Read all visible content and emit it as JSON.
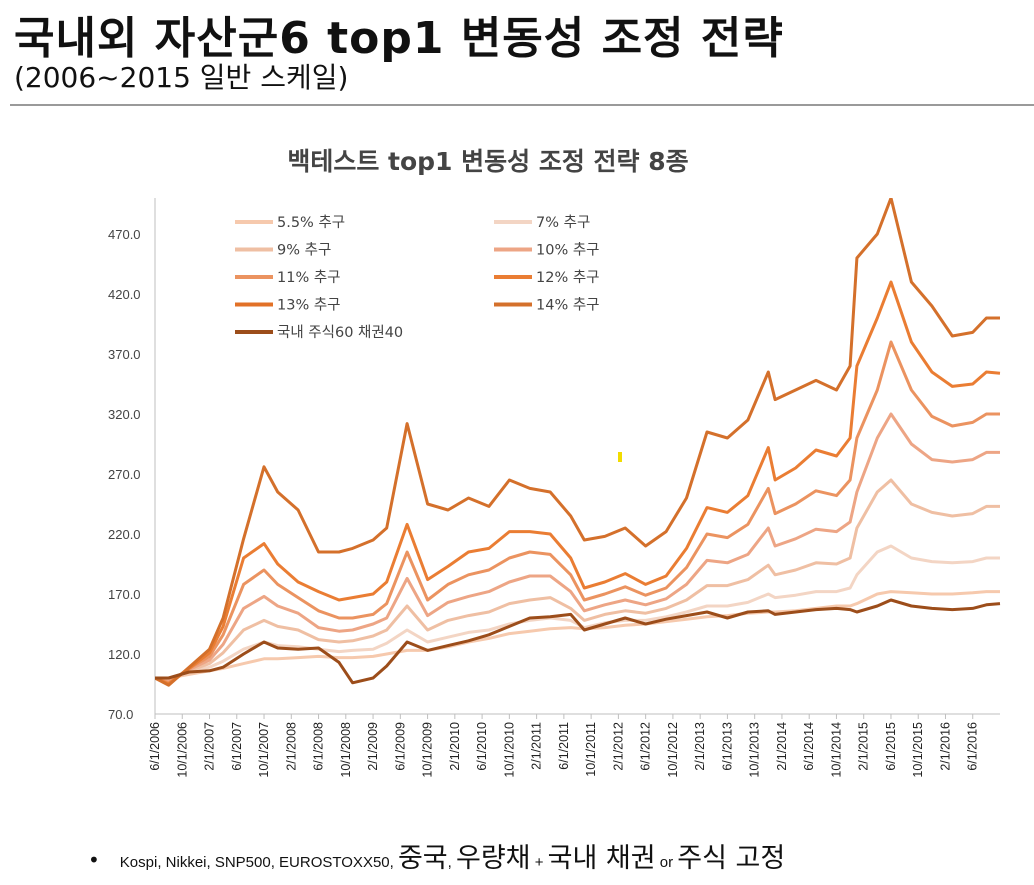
{
  "slide": {
    "title": "국내외 자산군6 top1 변동성 조정 전략",
    "subtitle": "(2006~2015 일반 스케일)"
  },
  "footer": {
    "bullet": "•",
    "part1": "Kospi, Nikkei, SNP500, EUROSTOXX50, ",
    "part2": "중국",
    "part3": ", ",
    "part4": "우량채",
    "part5": " + ",
    "part6": "국내 채권",
    "part7": " or ",
    "part8": "주식 고정"
  },
  "chart_data": {
    "type": "line",
    "title": "백테스트 top1 변동성 조정 전략 8종",
    "y_ticks": [
      "70.0",
      "120.0",
      "170.0",
      "220.0",
      "270.0",
      "320.0",
      "370.0",
      "420.0",
      "470.0"
    ],
    "ylim": [
      70,
      500
    ],
    "x_ticks": [
      "6/1/2006",
      "10/1/2006",
      "2/1/2007",
      "6/1/2007",
      "10/1/2007",
      "2/1/2008",
      "6/1/2008",
      "10/1/2008",
      "2/1/2009",
      "6/1/2009",
      "10/1/2009",
      "2/1/2010",
      "6/1/2010",
      "10/1/2010",
      "2/1/2011",
      "6/1/2011",
      "10/1/2011",
      "2/1/2012",
      "6/1/2012",
      "10/1/2012",
      "2/1/2013",
      "6/1/2013",
      "10/1/2013",
      "2/1/2014",
      "6/1/2014",
      "10/1/2014",
      "2/1/2015",
      "6/1/2015",
      "10/1/2015",
      "2/1/2016",
      "6/1/2016"
    ],
    "x_range": [
      "2006-06",
      "2016-10"
    ],
    "grid": false,
    "legend_position": "top-left, two columns",
    "data_points": [
      {
        "date": "2006-06",
        "v": [
          100,
          100,
          100,
          100,
          100,
          100,
          100,
          100
        ]
      },
      {
        "date": "2006-08",
        "v": [
          100,
          99,
          98,
          97,
          96,
          95,
          94,
          100
        ]
      },
      {
        "date": "2006-11",
        "v": [
          103,
          105,
          106,
          107,
          108,
          108,
          109,
          105
        ]
      },
      {
        "date": "2007-02",
        "v": [
          106,
          109,
          112,
          115,
          118,
          121,
          124,
          106
        ]
      },
      {
        "date": "2007-04",
        "v": [
          108,
          114,
          121,
          128,
          136,
          143,
          150,
          109
        ]
      },
      {
        "date": "2007-07",
        "v": [
          112,
          124,
          140,
          158,
          178,
          200,
          216,
          120
        ]
      },
      {
        "date": "2007-10",
        "v": [
          116,
          130,
          148,
          168,
          190,
          212,
          276,
          130
        ]
      },
      {
        "date": "2007-12",
        "v": [
          116,
          127,
          143,
          160,
          178,
          195,
          255,
          125
        ]
      },
      {
        "date": "2008-03",
        "v": [
          117,
          126,
          140,
          154,
          167,
          180,
          240,
          124
        ]
      },
      {
        "date": "2008-06",
        "v": [
          118,
          124,
          132,
          142,
          156,
          172,
          205,
          125
        ]
      },
      {
        "date": "2008-09",
        "v": [
          117,
          122,
          130,
          139,
          150,
          165,
          205,
          113
        ]
      },
      {
        "date": "2008-11",
        "v": [
          117,
          123,
          131,
          140,
          150,
          167,
          208,
          96
        ]
      },
      {
        "date": "2009-02",
        "v": [
          118,
          124,
          135,
          145,
          153,
          170,
          215,
          100
        ]
      },
      {
        "date": "2009-04",
        "v": [
          120,
          129,
          140,
          150,
          162,
          180,
          225,
          110
        ]
      },
      {
        "date": "2009-07",
        "v": [
          123,
          140,
          160,
          183,
          205,
          228,
          312,
          130
        ]
      },
      {
        "date": "2009-10",
        "v": [
          123,
          130,
          140,
          152,
          165,
          182,
          245,
          123
        ]
      },
      {
        "date": "2010-01",
        "v": [
          126,
          134,
          148,
          163,
          178,
          193,
          240,
          127
        ]
      },
      {
        "date": "2010-04",
        "v": [
          130,
          138,
          152,
          168,
          186,
          205,
          250,
          131
        ]
      },
      {
        "date": "2010-07",
        "v": [
          133,
          140,
          155,
          172,
          190,
          208,
          243,
          136
        ]
      },
      {
        "date": "2010-10",
        "v": [
          137,
          145,
          162,
          180,
          200,
          222,
          265,
          143
        ]
      },
      {
        "date": "2011-01",
        "v": [
          139,
          148,
          165,
          185,
          205,
          222,
          258,
          150
        ]
      },
      {
        "date": "2011-04",
        "v": [
          141,
          150,
          167,
          185,
          203,
          220,
          255,
          151
        ]
      },
      {
        "date": "2011-07",
        "v": [
          142,
          148,
          158,
          172,
          186,
          200,
          235,
          153
        ]
      },
      {
        "date": "2011-09",
        "v": [
          141,
          142,
          148,
          156,
          165,
          175,
          215,
          140
        ]
      },
      {
        "date": "2011-12",
        "v": [
          142,
          146,
          153,
          161,
          170,
          180,
          218,
          145
        ]
      },
      {
        "date": "2012-03",
        "v": [
          144,
          148,
          156,
          165,
          176,
          187,
          225,
          150
        ]
      },
      {
        "date": "2012-06",
        "v": [
          145,
          148,
          154,
          161,
          169,
          178,
          210,
          145
        ]
      },
      {
        "date": "2012-09",
        "v": [
          147,
          151,
          158,
          166,
          175,
          185,
          222,
          149
        ]
      },
      {
        "date": "2012-12",
        "v": [
          149,
          155,
          165,
          178,
          192,
          208,
          250,
          152
        ]
      },
      {
        "date": "2013-03",
        "v": [
          151,
          160,
          177,
          198,
          220,
          242,
          305,
          155
        ]
      },
      {
        "date": "2013-06",
        "v": [
          152,
          160,
          177,
          196,
          217,
          238,
          300,
          150
        ]
      },
      {
        "date": "2013-09",
        "v": [
          154,
          163,
          182,
          203,
          228,
          252,
          315,
          155
        ]
      },
      {
        "date": "2013-12",
        "v": [
          155,
          170,
          194,
          225,
          258,
          292,
          355,
          156
        ]
      },
      {
        "date": "2014-01",
        "v": [
          155,
          167,
          186,
          210,
          237,
          265,
          332,
          153
        ]
      },
      {
        "date": "2014-04",
        "v": [
          156,
          169,
          190,
          216,
          245,
          275,
          340,
          155
        ]
      },
      {
        "date": "2014-07",
        "v": [
          158,
          172,
          196,
          224,
          256,
          290,
          348,
          157
        ]
      },
      {
        "date": "2014-10",
        "v": [
          160,
          172,
          195,
          222,
          252,
          285,
          340,
          158
        ]
      },
      {
        "date": "2014-12",
        "v": [
          160,
          175,
          200,
          230,
          265,
          300,
          360,
          157
        ]
      },
      {
        "date": "2015-01",
        "v": [
          162,
          186,
          225,
          255,
          300,
          360,
          450,
          155
        ]
      },
      {
        "date": "2015-04",
        "v": [
          170,
          205,
          255,
          300,
          340,
          400,
          470,
          160
        ]
      },
      {
        "date": "2015-06",
        "v": [
          172,
          210,
          265,
          320,
          380,
          430,
          500,
          165
        ]
      },
      {
        "date": "2015-09",
        "v": [
          171,
          200,
          245,
          295,
          340,
          380,
          430,
          160
        ]
      },
      {
        "date": "2015-12",
        "v": [
          170,
          197,
          238,
          282,
          318,
          355,
          410,
          158
        ]
      },
      {
        "date": "2016-03",
        "v": [
          170,
          196,
          235,
          280,
          310,
          343,
          385,
          157
        ]
      },
      {
        "date": "2016-06",
        "v": [
          171,
          197,
          237,
          282,
          313,
          345,
          388,
          158
        ]
      },
      {
        "date": "2016-08",
        "v": [
          172,
          200,
          243,
          288,
          320,
          355,
          400,
          161
        ]
      },
      {
        "date": "2016-10",
        "v": [
          172,
          200,
          243,
          288,
          320,
          354,
          400,
          162
        ]
      }
    ],
    "series": [
      {
        "name": "5.5% 추구",
        "color": "#f6c9ad",
        "width": 3
      },
      {
        "name": "7% 추구",
        "color": "#f3d5c4",
        "width": 3
      },
      {
        "name": "9% 추구",
        "color": "#efbfa3",
        "width": 3
      },
      {
        "name": "10% 추구",
        "color": "#eda585",
        "width": 3
      },
      {
        "name": "11% 추구",
        "color": "#eb9360",
        "width": 3
      },
      {
        "name": "12% 추구",
        "color": "#ea7d33",
        "width": 3
      },
      {
        "name": "13% 추구",
        "color": "#e27127"
      },
      {
        "name": "14% 추구",
        "color": "#d4702b",
        "width": 3
      },
      {
        "name": "국내 주식60 채권40",
        "color": "#9c4d1a",
        "width": 3
      }
    ],
    "plotted_series_order": [
      0,
      1,
      2,
      3,
      4,
      5,
      7,
      8
    ]
  }
}
